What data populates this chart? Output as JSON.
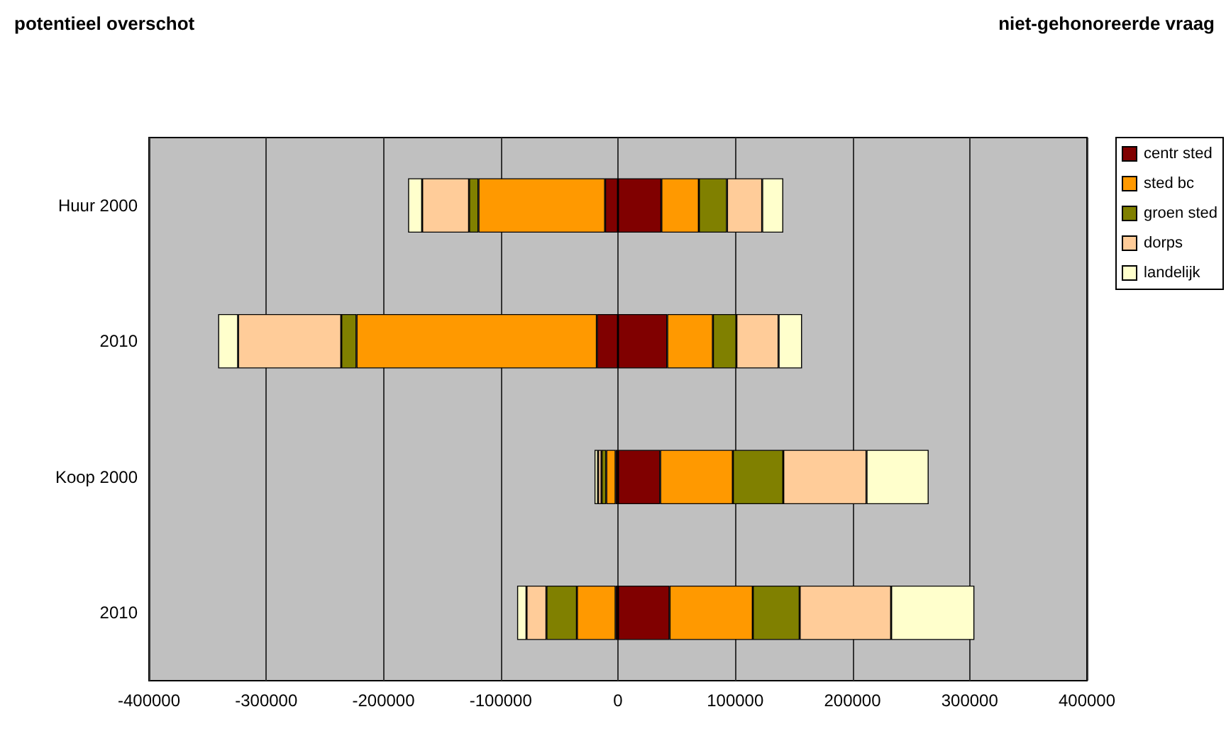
{
  "chart_data": {
    "type": "bar",
    "orientation": "horizontal",
    "stacked": true,
    "annotations": [
      "potentieel overschot",
      "niet-gehonoreerde vraag"
    ],
    "categories": [
      "Huur 2000",
      "2010",
      "Koop 2000",
      "2010"
    ],
    "series": [
      {
        "name": "centr sted",
        "color": "#800000",
        "values": [
          37000,
          42000,
          36000,
          44000
        ]
      },
      {
        "name": "sted bc",
        "color": "#ff9900",
        "values": [
          32000,
          39000,
          62000,
          71000
        ]
      },
      {
        "name": "groen sted",
        "color": "#808000",
        "values": [
          24000,
          20000,
          43000,
          40000
        ]
      },
      {
        "name": "dorps",
        "color": "#ffcc99",
        "values": [
          30000,
          36000,
          71000,
          78000
        ]
      },
      {
        "name": "landelijk",
        "color": "#ffffcc",
        "values": [
          18000,
          20000,
          53000,
          71000
        ]
      },
      {
        "color": "#800000",
        "values": [
          -11000,
          -18000,
          -2000,
          -2000
        ]
      },
      {
        "color": "#ff9900",
        "values": [
          -108000,
          -205000,
          -8000,
          -33000
        ]
      },
      {
        "color": "#808000",
        "values": [
          -8000,
          -13000,
          -4000,
          -26000
        ]
      },
      {
        "color": "#ffcc99",
        "values": [
          -40000,
          -88000,
          -3000,
          -17000
        ]
      },
      {
        "color": "#ffffcc",
        "values": [
          -12000,
          -17000,
          -3000,
          -8000
        ]
      }
    ],
    "xlim": [
      -400000,
      400000
    ],
    "xticks": [
      -400000,
      -300000,
      -200000,
      -100000,
      0,
      100000,
      200000,
      300000,
      400000
    ],
    "grid": "x",
    "legend": "top right"
  }
}
